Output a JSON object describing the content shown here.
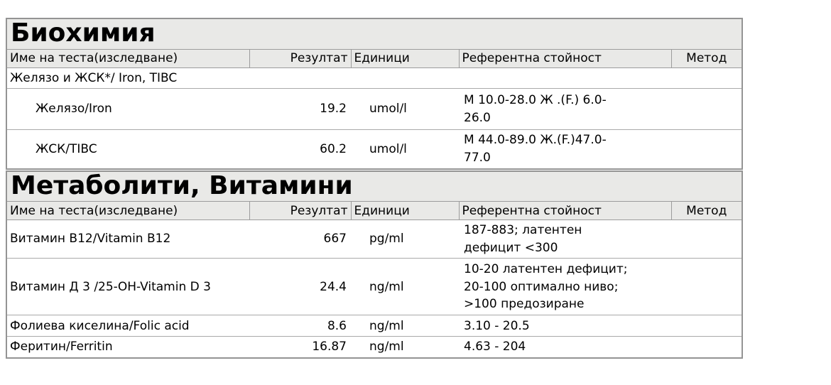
{
  "columns": {
    "name": "Име на теста(изследване)",
    "result": "Резултат",
    "units": "Единици",
    "reference": "Референтна стойност",
    "method": "Метод"
  },
  "colors": {
    "header_bg": "#e9e9e7",
    "outer_border": "#949494",
    "row_border": "#a9a9a9",
    "text": "#000000"
  },
  "sections": [
    {
      "title": "Биохимия",
      "rows": [
        {
          "name": "Желязо и ЖСК*/ Iron, TIBC",
          "type": "group"
        },
        {
          "name": "Желязо/Iron",
          "result": "19.2",
          "units": "umol/l",
          "reference": " М 10.0-28.0 Ж .(F.) 6.0-\n26.0",
          "method": ""
        },
        {
          "name": "ЖСК/TIBC",
          "result": "60.2",
          "units": "umol/l",
          "reference": " М 44.0-89.0 Ж.(F.)47.0-\n77.0",
          "method": ""
        }
      ]
    },
    {
      "title": "Метаболити, Витамини",
      "rows": [
        {
          "name": "Витамин В12/Vitamin B12",
          "result": "667",
          "units": "pg/ml",
          "reference": " 187-883; латентен\nдефицит <300",
          "method": ""
        },
        {
          "name": "Витамин Д 3 /25-OH-Vitamin D 3",
          "result": "24.4",
          "units": "ng/ml",
          "reference": " 10-20 латентен дефицит;\n20-100 оптимално ниво;\n>100 предозиране",
          "method": ""
        },
        {
          "name": "Фолиева киселина/Folic acid",
          "result": "8.6",
          "units": "ng/ml",
          "reference": " 3.10 - 20.5",
          "method": ""
        },
        {
          "name": "Феритин/Ferritin",
          "result": "16.87",
          "units": "ng/ml",
          "reference": " 4.63 - 204",
          "method": ""
        }
      ]
    }
  ]
}
